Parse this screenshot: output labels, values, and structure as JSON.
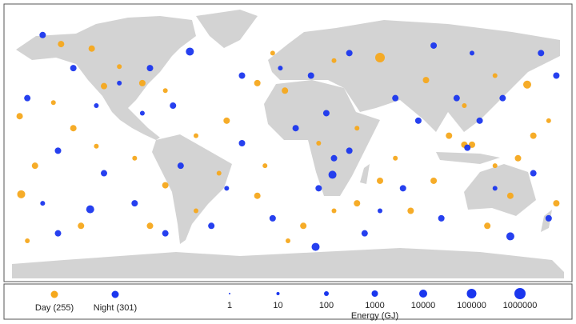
{
  "chart_data": {
    "type": "scatter",
    "xlim": [
      -180,
      180
    ],
    "ylim": [
      -90,
      90
    ],
    "series": [
      {
        "name": "Day (255)",
        "color": "#f5a81c",
        "x": [
          60,
          156,
          -174,
          -148,
          -128,
          -110,
          -175,
          -153,
          -140,
          -125,
          -165,
          -100,
          -80,
          -60,
          -40,
          -45,
          -20,
          -20,
          -10,
          10,
          30,
          45,
          60,
          70,
          80,
          95,
          105,
          115,
          120,
          135,
          145,
          150,
          160,
          170,
          175,
          -170,
          -90,
          -135,
          130,
          0,
          90,
          115,
          -2,
          30,
          -80,
          -95,
          -120,
          -60,
          20,
          45,
          135,
          -15
        ],
        "y": [
          57,
          39,
          -34,
          66,
          63,
          51,
          18,
          27,
          10,
          -2,
          -15,
          -10,
          -28,
          -45,
          15,
          -20,
          -35,
          40,
          60,
          -55,
          -45,
          -40,
          -25,
          -10,
          -45,
          -25,
          5,
          -1,
          -1,
          -15,
          -35,
          -10,
          5,
          15,
          -40,
          -65,
          -55,
          -55,
          -55,
          -65,
          42,
          25,
          35,
          55,
          35,
          40,
          38,
          5,
          0,
          10,
          45,
          -15
        ],
        "size": [
          100000,
          10000,
          10000,
          1000,
          1000,
          100,
          1000,
          100,
          1000,
          100,
          1000,
          100,
          1000,
          100,
          1000,
          100,
          1000,
          1000,
          100,
          1000,
          100,
          1000,
          1000,
          100,
          1000,
          1000,
          1000,
          1000,
          1000,
          100,
          1000,
          1000,
          1000,
          100,
          1000,
          100,
          1000,
          1000,
          1000,
          100,
          1000,
          100,
          1000,
          100,
          100,
          1000,
          1000,
          100,
          100,
          100,
          100,
          100
        ]
      },
      {
        "name": "Night (301)",
        "color": "#1a36ee",
        "x": [
          -64,
          -129,
          29,
          18,
          145,
          117,
          -160,
          -140,
          -110,
          -90,
          -75,
          -95,
          -170,
          -150,
          -120,
          -100,
          -70,
          -50,
          -30,
          -30,
          -5,
          15,
          25,
          40,
          20,
          50,
          70,
          60,
          85,
          100,
          110,
          125,
          135,
          140,
          160,
          170,
          175,
          -10,
          -160,
          -150,
          95,
          120,
          40,
          -40,
          -80,
          5,
          30,
          165,
          -125,
          75
        ],
        "y": [
          61,
          -44,
          -21,
          -69,
          -62,
          -3,
          72,
          50,
          40,
          50,
          25,
          20,
          30,
          -5,
          -20,
          -40,
          -15,
          -55,
          0,
          45,
          50,
          45,
          20,
          -5,
          -30,
          -60,
          30,
          -45,
          15,
          -50,
          30,
          15,
          -30,
          30,
          -20,
          -50,
          45,
          -50,
          -40,
          -60,
          65,
          60,
          60,
          -30,
          -60,
          10,
          -10,
          60,
          25,
          -30
        ],
        "size": [
          10000,
          10000,
          10000,
          10000,
          10000,
          1000,
          1000,
          1000,
          100,
          1000,
          1000,
          100,
          1000,
          1000,
          1000,
          1000,
          1000,
          1000,
          1000,
          1000,
          100,
          1000,
          1000,
          1000,
          1000,
          1000,
          1000,
          100,
          1000,
          1000,
          1000,
          1000,
          100,
          1000,
          1000,
          1000,
          1000,
          1000,
          100,
          1000,
          1000,
          100,
          1000,
          100,
          1000,
          1000,
          1000,
          1000,
          100,
          1000
        ]
      }
    ],
    "size_legend": {
      "title": "Energy (GJ)",
      "values": [
        1,
        10,
        100,
        1000,
        10000,
        100000,
        1000000
      ]
    }
  }
}
